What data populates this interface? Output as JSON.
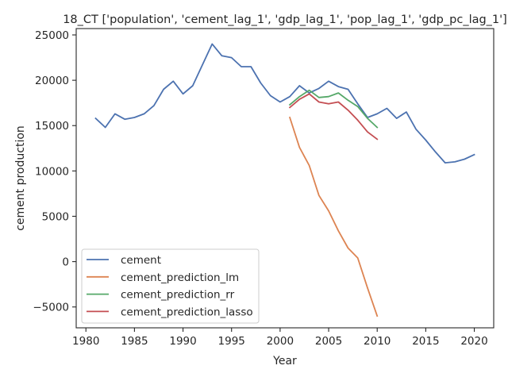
{
  "chart_data": {
    "type": "line",
    "title": "18_CT ['population', 'cement_lag_1', 'gdp_lag_1', 'pop_lag_1', 'gdp_pc_lag_1']",
    "xlabel": "Year",
    "ylabel": "cement production",
    "xlim": [
      1979,
      2022
    ],
    "ylim": [
      -7300,
      25700
    ],
    "xticks": [
      1980,
      1985,
      1990,
      1995,
      2000,
      2005,
      2010,
      2015,
      2020
    ],
    "yticks": [
      -5000,
      0,
      5000,
      10000,
      15000,
      20000,
      25000
    ],
    "grid": false,
    "legend_position": "lower-left",
    "series": [
      {
        "name": "cement",
        "color": "#4c72b0",
        "x": [
          1981,
          1982,
          1983,
          1984,
          1985,
          1986,
          1987,
          1988,
          1989,
          1990,
          1991,
          1992,
          1993,
          1994,
          1995,
          1996,
          1997,
          1998,
          1999,
          2000,
          2001,
          2002,
          2003,
          2004,
          2005,
          2006,
          2007,
          2008,
          2009,
          2010,
          2011,
          2012,
          2013,
          2014,
          2015,
          2016,
          2017,
          2018,
          2019,
          2020
        ],
        "y": [
          15800,
          14800,
          16300,
          15700,
          15900,
          16300,
          17200,
          19000,
          19900,
          18500,
          19400,
          21700,
          24000,
          22700,
          22500,
          21500,
          21500,
          19700,
          18300,
          17600,
          18200,
          19400,
          18600,
          19100,
          19900,
          19300,
          19000,
          17400,
          15900,
          16300,
          16900,
          15800,
          16500,
          14600,
          13400,
          12100,
          10900,
          11000,
          11300,
          11800
        ]
      },
      {
        "name": "cement_prediction_lm",
        "color": "#dd8452",
        "x": [
          2001,
          2002,
          2003,
          2004,
          2005,
          2006,
          2007,
          2008,
          2009,
          2010
        ],
        "y": [
          15900,
          12600,
          10600,
          7300,
          5600,
          3400,
          1500,
          400,
          -2900,
          -6000
        ]
      },
      {
        "name": "cement_prediction_rr",
        "color": "#55a868",
        "x": [
          2001,
          2002,
          2003,
          2004,
          2005,
          2006,
          2007,
          2008,
          2009,
          2010
        ],
        "y": [
          17300,
          18200,
          18900,
          18100,
          18200,
          18600,
          17800,
          17100,
          15800,
          14800
        ]
      },
      {
        "name": "cement_prediction_lasso",
        "color": "#c44e52",
        "x": [
          2001,
          2002,
          2003,
          2004,
          2005,
          2006,
          2007,
          2008,
          2009,
          2010
        ],
        "y": [
          17000,
          17900,
          18500,
          17600,
          17400,
          17600,
          16700,
          15600,
          14300,
          13500
        ]
      }
    ]
  }
}
